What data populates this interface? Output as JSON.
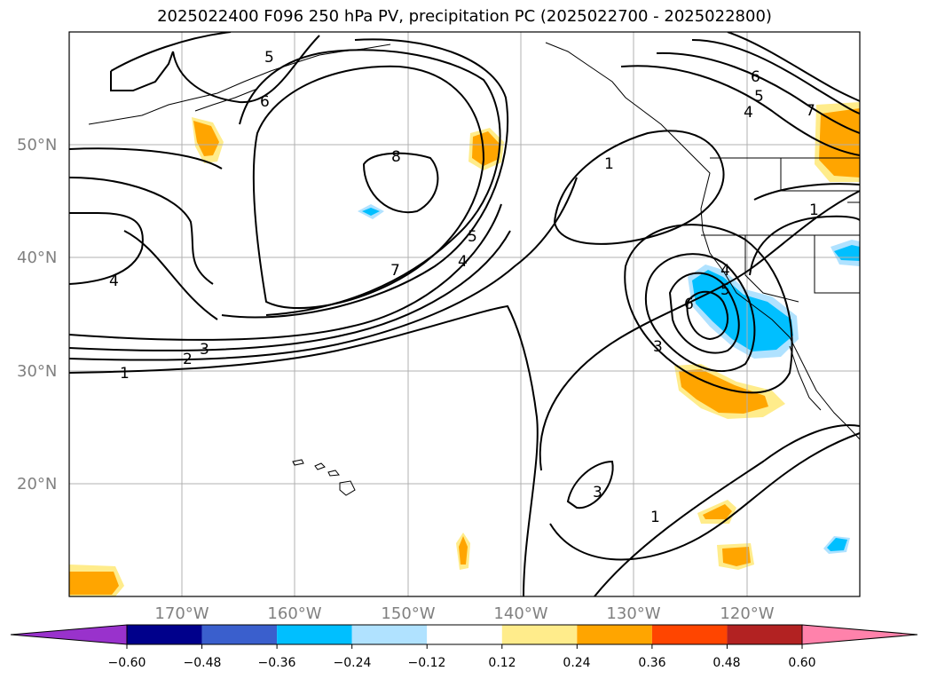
{
  "title": "2025022400 F096 250 hPa PV, precipitation PC (2025022700 - 2025022800)",
  "lat_labels": [
    "20°N",
    "30°N",
    "40°N",
    "50°N"
  ],
  "lon_labels": [
    "170°W",
    "160°W",
    "150°W",
    "140°W",
    "130°W",
    "120°W"
  ],
  "colorbar": {
    "ticks": [
      "−0.60",
      "−0.48",
      "−0.36",
      "−0.24",
      "−0.12",
      "0.12",
      "0.24",
      "0.36",
      "0.48",
      "0.60"
    ],
    "colors": [
      "#9932cc",
      "#00008b",
      "#3a5fcd",
      "#00bfff",
      "#b0e2ff",
      "#ffffff",
      "#ffec8b",
      "#ffa500",
      "#ff4500",
      "#b22222",
      "#ff82ab"
    ]
  },
  "contour_labels": [
    "5",
    "6",
    "8",
    "7",
    "5",
    "4",
    "4",
    "3",
    "2",
    "1",
    "1",
    "4",
    "5",
    "6",
    "3",
    "3",
    "1",
    "6",
    "4",
    "5",
    "7",
    "1"
  ]
}
